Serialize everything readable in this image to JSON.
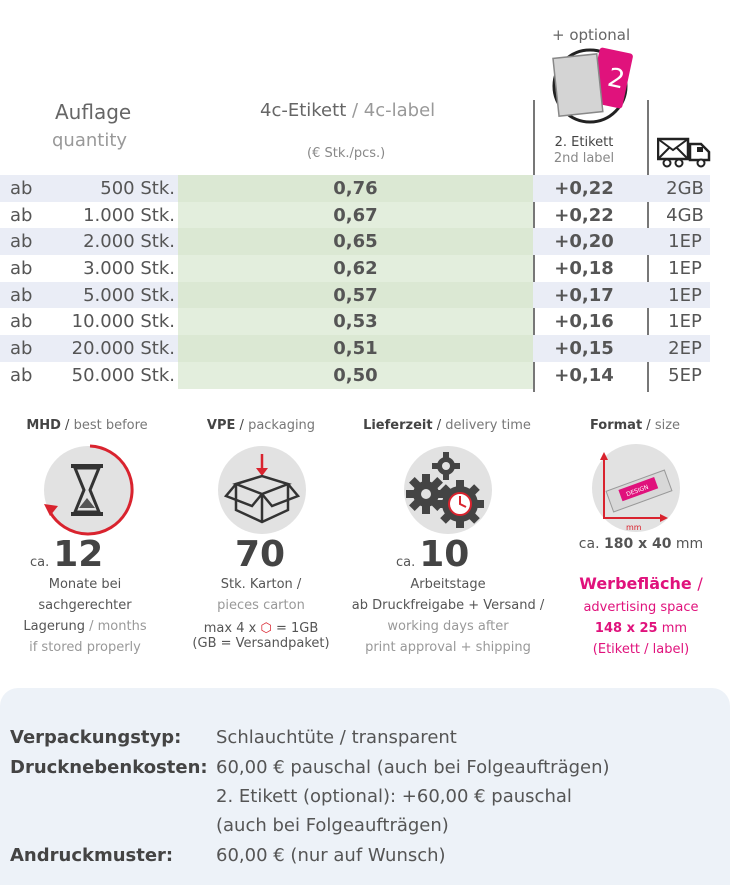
{
  "header": {
    "optional": "+ optional",
    "auflage": "Auflage",
    "quantity": "quantity",
    "etikett_de": "4c-Etikett",
    "etikett_sep": " / ",
    "etikett_en": "4c-label",
    "unit": "(€ Stk./pcs.)",
    "second_label_de": "2. Etikett",
    "second_label_en": "2nd label",
    "shipping_icon": "truck-envelope-icon"
  },
  "rows": [
    {
      "ab": "ab",
      "qty": "500 Stk.",
      "price": "0,76",
      "second": "+0,22",
      "ship": "2GB"
    },
    {
      "ab": "ab",
      "qty": "1.000 Stk.",
      "price": "0,67",
      "second": "+0,22",
      "ship": "4GB"
    },
    {
      "ab": "ab",
      "qty": "2.000 Stk.",
      "price": "0,65",
      "second": "+0,20",
      "ship": "1EP"
    },
    {
      "ab": "ab",
      "qty": "3.000 Stk.",
      "price": "0,62",
      "second": "+0,18",
      "ship": "1EP"
    },
    {
      "ab": "ab",
      "qty": "5.000 Stk.",
      "price": "0,57",
      "second": "+0,17",
      "ship": "1EP"
    },
    {
      "ab": "ab",
      "qty": "10.000 Stk.",
      "price": "0,53",
      "second": "+0,16",
      "ship": "1EP"
    },
    {
      "ab": "ab",
      "qty": "20.000 Stk.",
      "price": "0,51",
      "second": "+0,15",
      "ship": "2EP"
    },
    {
      "ab": "ab",
      "qty": "50.000 Stk.",
      "price": "0,50",
      "second": "+0,14",
      "ship": "5EP"
    }
  ],
  "mhd": {
    "title_de": "MHD",
    "title_en": "best before",
    "ca": "ca.",
    "value": "12",
    "line1": "Monate bei",
    "line2": "sachgerechter",
    "line3_de": "Lagerung",
    "line3_en": "months",
    "line4": "if stored properly"
  },
  "vpe": {
    "title_de": "VPE",
    "title_en": "packaging",
    "value": "70",
    "line1": "Stk. Karton /",
    "line2": "pieces carton",
    "line3a": "max 4 x",
    "line3b": "= 1GB",
    "line4": "(GB = Versandpaket)"
  },
  "lieferzeit": {
    "title_de": "Lieferzeit",
    "title_en": "delivery time",
    "ca": "ca.",
    "value": "10",
    "line1": "Arbeitstage",
    "line2": "ab Druckfreigabe + Versand /",
    "line3": "working days after",
    "line4": "print approval + shipping"
  },
  "format": {
    "title_de": "Format",
    "title_en": "size",
    "mm_label": "mm",
    "ca": "ca.",
    "size": "180 x 40",
    "size_unit": "mm",
    "werbe_de": "Werbefläche",
    "werbe_en": "advertising space",
    "werbe_size": "148 x 25",
    "werbe_unit": "mm",
    "werbe_note": "(Etikett / label)"
  },
  "details": {
    "type_label": "Verpackungstyp:",
    "type_value": "Schlauchtüte / transparent",
    "costs_label": "Drucknebenkosten:",
    "costs_line1": "60,00 € pauschal (auch bei Folgeaufträgen)",
    "costs_line2": "2. Etikett (optional): +60,00 € pauschal",
    "costs_line3": "(auch bei Folgeaufträgen)",
    "proof_label": "Andruckmuster:",
    "proof_value": "60,00 € (nur auf Wunsch)"
  },
  "colors": {
    "accent_pink": "#e0127c",
    "accent_red": "#d9232e",
    "green_band": "#e3eedd",
    "row_alt": "#eaedf6",
    "bottom_box": "#edf2f8"
  }
}
